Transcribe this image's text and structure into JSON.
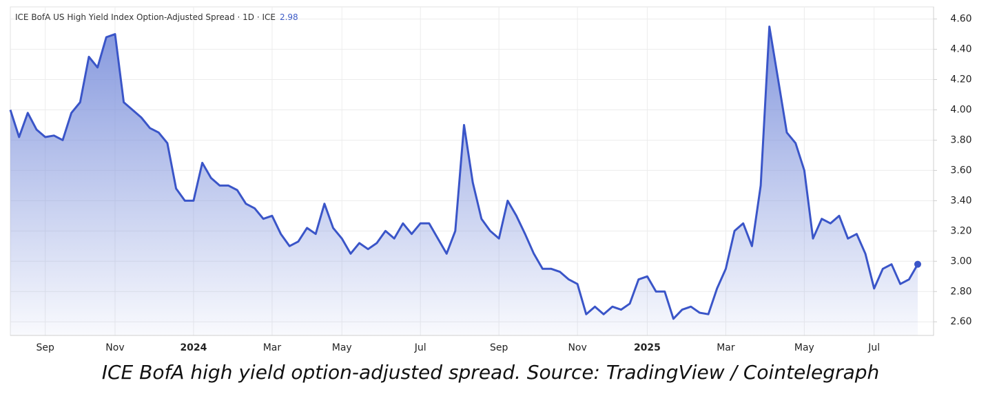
{
  "chart_data": {
    "type": "area",
    "title": "ICE BofA US High Yield Index Option-Adjusted Spread · 1D · ICE",
    "last_value": 2.98,
    "caption": "ICE BofA high yield option-adjusted spread. Source: TradingView / Cointelegraph",
    "categories": [
      null,
      null,
      null,
      null,
      "Sep",
      null,
      null,
      null,
      null,
      null,
      null,
      null,
      "Nov",
      null,
      null,
      null,
      null,
      null,
      null,
      null,
      null,
      "2024",
      null,
      null,
      null,
      null,
      null,
      null,
      null,
      null,
      "Mar",
      null,
      null,
      null,
      null,
      null,
      null,
      null,
      "May",
      null,
      null,
      null,
      null,
      null,
      null,
      null,
      null,
      "Jul",
      null,
      null,
      null,
      null,
      null,
      null,
      null,
      null,
      "Sep",
      null,
      null,
      null,
      null,
      null,
      null,
      null,
      null,
      "Nov",
      null,
      null,
      null,
      null,
      null,
      null,
      null,
      "2025",
      null,
      null,
      null,
      null,
      null,
      null,
      null,
      null,
      "Mar",
      null,
      null,
      null,
      null,
      null,
      null,
      null,
      null,
      "May",
      null,
      null,
      null,
      null,
      null,
      null,
      null,
      "Jul",
      null,
      null,
      null,
      null,
      null
    ],
    "values": [
      4.0,
      3.82,
      3.98,
      3.87,
      3.82,
      3.83,
      3.8,
      3.98,
      4.05,
      4.35,
      4.28,
      4.48,
      4.5,
      4.05,
      4.0,
      3.95,
      3.88,
      3.85,
      3.78,
      3.48,
      3.4,
      3.4,
      3.65,
      3.55,
      3.5,
      3.5,
      3.47,
      3.38,
      3.35,
      3.28,
      3.3,
      3.18,
      3.1,
      3.13,
      3.22,
      3.18,
      3.38,
      3.22,
      3.15,
      3.05,
      3.12,
      3.08,
      3.12,
      3.2,
      3.15,
      3.25,
      3.18,
      3.25,
      3.25,
      3.15,
      3.05,
      3.2,
      3.9,
      3.52,
      3.28,
      3.2,
      3.15,
      3.4,
      3.3,
      3.18,
      3.05,
      2.95,
      2.95,
      2.93,
      2.88,
      2.85,
      2.65,
      2.7,
      2.65,
      2.7,
      2.68,
      2.72,
      2.88,
      2.9,
      2.8,
      2.8,
      2.62,
      2.68,
      2.7,
      2.66,
      2.65,
      2.82,
      2.95,
      3.2,
      3.25,
      3.1,
      3.5,
      4.55,
      4.2,
      3.85,
      3.78,
      3.6,
      3.15,
      3.28,
      3.25,
      3.3,
      3.15,
      3.18,
      3.05,
      2.82,
      2.95,
      2.98,
      2.85,
      2.88,
      2.98
    ],
    "color": "#3a55c8",
    "ylim": [
      2.51,
      4.68
    ],
    "yticks": [
      {
        "value": 2.6,
        "label": "2.60"
      },
      {
        "value": 2.8,
        "label": "2.80"
      },
      {
        "value": 3.0,
        "label": "3.00"
      },
      {
        "value": 3.2,
        "label": "3.20"
      },
      {
        "value": 3.4,
        "label": "3.40"
      },
      {
        "value": 3.6,
        "label": "3.60"
      },
      {
        "value": 3.8,
        "label": "3.80"
      },
      {
        "value": 4.0,
        "label": "4.00"
      },
      {
        "value": 4.2,
        "label": "4.20"
      },
      {
        "value": 4.4,
        "label": "4.40"
      },
      {
        "value": 4.6,
        "label": "4.60"
      }
    ],
    "grid": true
  }
}
